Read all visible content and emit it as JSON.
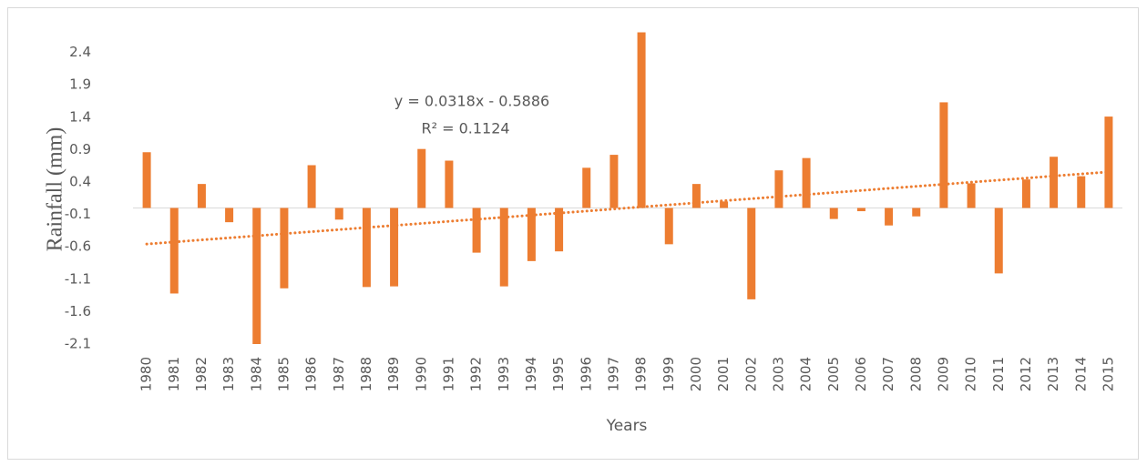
{
  "chart_data": {
    "type": "bar",
    "y_label": "Rainfall (mm)",
    "x_label": "Years",
    "categories": [
      "1980",
      "1981",
      "1982",
      "1983",
      "1984",
      "1985",
      "1986",
      "1987",
      "1988",
      "1989",
      "1990",
      "1991",
      "1992",
      "1993",
      "1994",
      "1995",
      "1996",
      "1997",
      "1998",
      "1999",
      "2000",
      "2001",
      "2002",
      "2003",
      "2004",
      "2005",
      "2006",
      "2007",
      "2008",
      "2009",
      "2010",
      "2011",
      "2012",
      "2013",
      "2014",
      "2015"
    ],
    "values": [
      0.86,
      -1.32,
      0.37,
      -0.22,
      -2.1,
      -1.24,
      0.66,
      -0.18,
      -1.22,
      -1.21,
      0.91,
      0.73,
      -0.69,
      -1.21,
      -0.82,
      -0.67,
      0.62,
      0.82,
      2.71,
      -0.56,
      0.37,
      0.1,
      -1.41,
      0.58,
      0.77,
      -0.17,
      -0.05,
      -0.27,
      -0.13,
      1.63,
      0.38,
      -1.01,
      0.44,
      0.79,
      0.49,
      1.41
    ],
    "color": "#ed7d31",
    "ylim": [
      -2.1,
      2.9
    ],
    "yticks": [
      -2.1,
      -1.6,
      -1.1,
      -0.6,
      -0.1,
      0.4,
      0.9,
      1.4,
      1.9,
      2.4
    ],
    "trendline": {
      "slope": 0.0318,
      "intercept": -0.5886,
      "equation": "y = 0.0318x - 0.5886",
      "r_squared": "R² = 0.1124"
    }
  }
}
